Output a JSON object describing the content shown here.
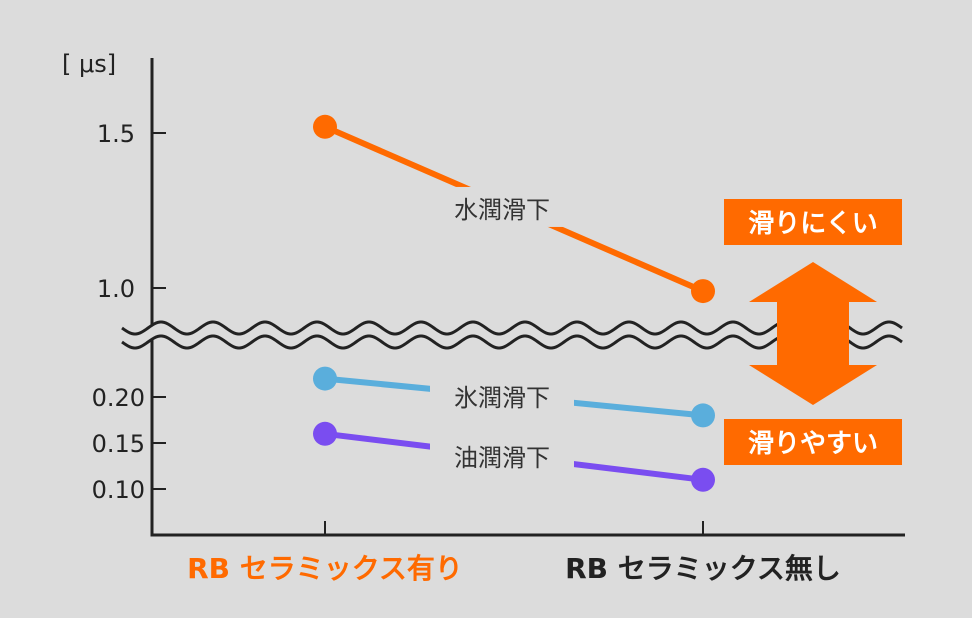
{
  "chart_data": {
    "type": "line",
    "unit_label": "[ μs]",
    "categories": [
      "RB セラミックス有り",
      "RB セラミックス無し"
    ],
    "category_colors": [
      "#ff6a00",
      "#222222"
    ],
    "axis": {
      "upper_ticks": [
        1.5,
        1.0
      ],
      "upper_tick_labels": [
        "1.5",
        "1.0"
      ],
      "lower_ticks": [
        0.2,
        0.15,
        0.1
      ],
      "lower_tick_labels": [
        "0.20",
        "0.15",
        "0.10"
      ],
      "broken": true
    },
    "series": [
      {
        "name": "水潤滑下",
        "values": [
          1.52,
          0.99
        ],
        "color": "#ff6a00"
      },
      {
        "name": "氷潤滑下",
        "values": [
          0.22,
          0.18
        ],
        "color": "#5aaedc"
      },
      {
        "name": "油潤滑下",
        "values": [
          0.16,
          0.11
        ],
        "color": "#7a4df0"
      }
    ],
    "annotations": {
      "top": "滑りにくい",
      "bottom": "滑りやすい",
      "color": "#ff6a00"
    }
  }
}
